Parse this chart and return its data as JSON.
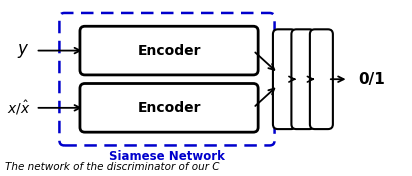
{
  "figsize": [
    4.12,
    1.76
  ],
  "dpi": 100,
  "bg_color": "#ffffff",
  "encoder_box_color": "#ffffff",
  "encoder_box_edge": "#000000",
  "siamese_box_color": "none",
  "siamese_box_edge": "#0000cc",
  "encoder1_label": "Encoder",
  "encoder2_label": "Encoder",
  "siamese_label": "Siamese Network",
  "siamese_label_color": "#0000cc",
  "output_label": "0/1",
  "y_label": "$y$",
  "x_label": "$x/\\hat{x}$",
  "caption": "The network of the discriminator of our C",
  "arrow_color": "#000000",
  "fc_rect_color": "#ffffff",
  "fc_rect_edge": "#000000",
  "xlim": [
    0,
    10
  ],
  "ylim": [
    0,
    4.27
  ]
}
